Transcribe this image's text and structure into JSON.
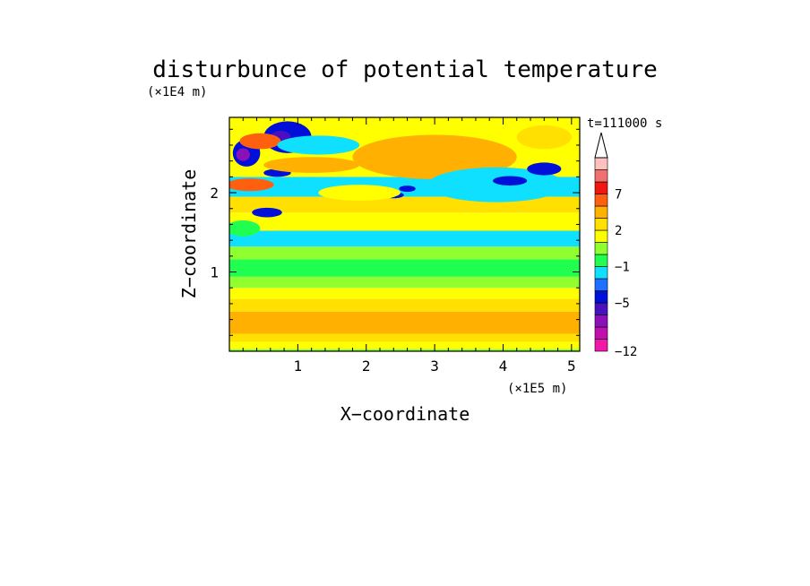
{
  "chart_data": {
    "type": "heatmap",
    "title": "disturbunce of potential temperature",
    "xlabel": "X−coordinate",
    "ylabel": "Z−coordinate",
    "x_unit": "(×1E5 m)",
    "y_unit": "(×1E4 m)",
    "time_label": "t=111000 s",
    "xlim": [
      0,
      5.12
    ],
    "ylim": [
      0,
      2.95
    ],
    "x_ticks": [
      1,
      2,
      3,
      4,
      5
    ],
    "y_ticks": [
      1,
      2
    ],
    "x_tick_labels": [
      "1",
      "2",
      "3",
      "4",
      "5"
    ],
    "y_tick_labels": [
      "1",
      "2"
    ],
    "colorbar": {
      "levels": [
        -12,
        -11,
        -9,
        -7,
        -5,
        -4,
        -2,
        -1,
        0,
        1,
        2,
        3,
        5,
        7,
        9,
        11
      ],
      "labels": [
        "−12",
        "−5",
        "−1",
        "2",
        "7"
      ],
      "label_values": [
        -12,
        -5,
        -1,
        2,
        7
      ],
      "colors": [
        "#f018a8",
        "#c010b0",
        "#8a10b8",
        "#4a10c0",
        "#0010d8",
        "#2070ff",
        "#10e0ff",
        "#20ff50",
        "#90ff30",
        "#ffff00",
        "#ffe000",
        "#ffb000",
        "#ff6010",
        "#f01810",
        "#f07070",
        "#ffc0c0"
      ],
      "extend": "max"
    },
    "bands": [
      {
        "z": [
          0.0,
          0.03
        ],
        "value": 0
      },
      {
        "z": [
          0.03,
          0.12
        ],
        "value": 1.5
      },
      {
        "z": [
          0.12,
          0.22
        ],
        "value": 2.5
      },
      {
        "z": [
          0.22,
          0.5
        ],
        "value": 3.5
      },
      {
        "z": [
          0.5,
          0.66
        ],
        "value": 2.5
      },
      {
        "z": [
          0.66,
          0.8
        ],
        "value": 1.5
      },
      {
        "z": [
          0.8,
          0.94
        ],
        "value": 0.5
      },
      {
        "z": [
          0.94,
          1.16
        ],
        "value": -0.3
      },
      {
        "z": [
          1.16,
          1.32
        ],
        "value": 0.5
      },
      {
        "z": [
          1.32,
          1.52
        ],
        "value": -1.2
      },
      {
        "z": [
          1.52,
          1.75
        ],
        "value": 1.5
      },
      {
        "z": [
          1.75,
          1.95
        ],
        "value": 2.5
      },
      {
        "z": [
          1.95,
          2.2
        ],
        "value": -1.2
      },
      {
        "z": [
          2.2,
          2.95
        ],
        "value": 1.5
      }
    ],
    "features": [
      {
        "x": 0.25,
        "z": 2.5,
        "rx": 0.2,
        "rz": 0.17,
        "value": -5
      },
      {
        "x": 0.2,
        "z": 2.48,
        "rx": 0.1,
        "rz": 0.08,
        "value": -9
      },
      {
        "x": 0.85,
        "z": 2.7,
        "rx": 0.35,
        "rz": 0.2,
        "value": -5
      },
      {
        "x": 0.75,
        "z": 2.7,
        "rx": 0.15,
        "rz": 0.08,
        "value": -7
      },
      {
        "x": 0.55,
        "z": 1.75,
        "rx": 0.22,
        "rz": 0.06,
        "value": -5
      },
      {
        "x": 0.7,
        "z": 2.25,
        "rx": 0.2,
        "rz": 0.05,
        "value": -5
      },
      {
        "x": 0.45,
        "z": 2.65,
        "rx": 0.3,
        "rz": 0.1,
        "value": 5
      },
      {
        "x": 0.3,
        "z": 2.1,
        "rx": 0.35,
        "rz": 0.08,
        "value": 5
      },
      {
        "x": 1.3,
        "z": 2.6,
        "rx": 0.6,
        "rz": 0.12,
        "value": -1.2
      },
      {
        "x": 1.2,
        "z": 2.35,
        "rx": 0.7,
        "rz": 0.1,
        "value": 3.5
      },
      {
        "x": 3.0,
        "z": 2.45,
        "rx": 1.2,
        "rz": 0.28,
        "value": 3.5
      },
      {
        "x": 3.9,
        "z": 2.1,
        "rx": 1.0,
        "rz": 0.22,
        "value": -1.2
      },
      {
        "x": 4.1,
        "z": 2.15,
        "rx": 0.25,
        "rz": 0.06,
        "value": -5
      },
      {
        "x": 4.6,
        "z": 2.3,
        "rx": 0.25,
        "rz": 0.08,
        "value": -5
      },
      {
        "x": 2.4,
        "z": 1.97,
        "rx": 0.15,
        "rz": 0.04,
        "value": -5
      },
      {
        "x": 2.6,
        "z": 2.05,
        "rx": 0.12,
        "rz": 0.04,
        "value": -5
      },
      {
        "x": 4.6,
        "z": 2.7,
        "rx": 0.4,
        "rz": 0.15,
        "value": 2.5
      },
      {
        "x": 1.9,
        "z": 2.0,
        "rx": 0.6,
        "rz": 0.1,
        "value": 1.5
      },
      {
        "x": 0.2,
        "z": 1.55,
        "rx": 0.25,
        "rz": 0.1,
        "value": -0.3
      },
      {
        "x": 2.2,
        "z": 0.4,
        "rx": 0.4,
        "rz": 0.07,
        "value": 4.5
      },
      {
        "x": 3.3,
        "z": 0.35,
        "rx": 0.3,
        "rz": 0.05,
        "value": 4.5
      }
    ]
  }
}
